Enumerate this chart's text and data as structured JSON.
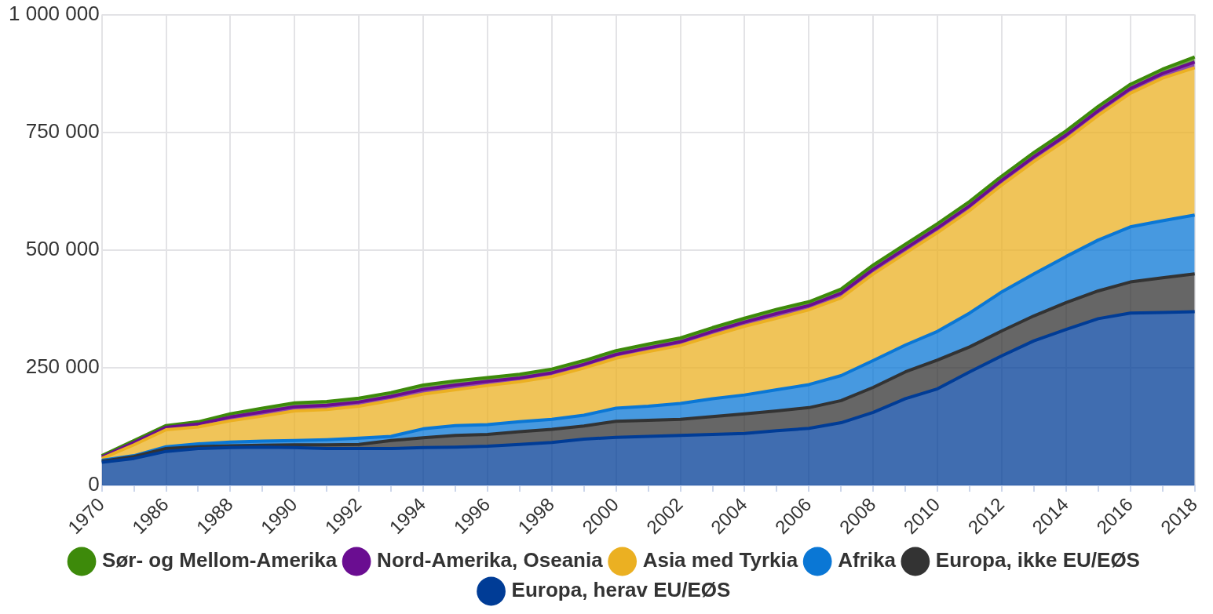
{
  "chart_data": {
    "type": "area",
    "stacked": true,
    "grid": true,
    "legend": "bottom",
    "categories": [
      "1970",
      null,
      "1986",
      null,
      "1988",
      null,
      "1990",
      null,
      "1992",
      null,
      "1994",
      null,
      "1996",
      null,
      "1998",
      null,
      "2000",
      null,
      "2002",
      null,
      "2004",
      null,
      "2006",
      null,
      "2008",
      null,
      "2010",
      null,
      "2012",
      null,
      "2014",
      null,
      "2016",
      null,
      "2018"
    ],
    "ylim": [
      0,
      1000000
    ],
    "yticks": [
      {
        "value": 0,
        "label": "0"
      },
      {
        "value": 250000,
        "label": "250 000"
      },
      {
        "value": 500000,
        "label": "500 000"
      },
      {
        "value": 750000,
        "label": "750 000"
      },
      {
        "value": 1000000,
        "label": "1 000 000"
      }
    ],
    "series": [
      {
        "name": "Europa, herav EU/EØS",
        "color": "#003c96",
        "values": [
          49000,
          57000,
          72000,
          78000,
          80000,
          81000,
          80000,
          78000,
          78000,
          78000,
          80000,
          81000,
          83000,
          87000,
          91000,
          98000,
          102000,
          104000,
          106000,
          108000,
          110000,
          116000,
          121000,
          133000,
          155000,
          184000,
          205000,
          241000,
          275000,
          307000,
          331000,
          354000,
          366000,
          367000,
          369000
        ]
      },
      {
        "name": "Europa, ikke EU/EØS",
        "color": "#333333",
        "values": [
          2000,
          4000,
          6000,
          4000,
          4000,
          4000,
          6000,
          8000,
          9000,
          17000,
          21000,
          25000,
          25000,
          27000,
          28000,
          28000,
          34000,
          34000,
          34000,
          38000,
          42000,
          42000,
          44000,
          47000,
          53000,
          57000,
          61000,
          53000,
          53000,
          53000,
          57000,
          59000,
          66000,
          74000,
          80000
        ]
      },
      {
        "name": "Afrika",
        "color": "#0a77d5",
        "values": [
          2000,
          2000,
          4000,
          6000,
          8000,
          9000,
          9000,
          11000,
          13000,
          9000,
          19000,
          21000,
          21000,
          21000,
          21000,
          23000,
          28000,
          30000,
          34000,
          38000,
          40000,
          45000,
          49000,
          53000,
          57000,
          57000,
          61000,
          72000,
          83000,
          89000,
          98000,
          108000,
          117000,
          121000,
          125000
        ]
      },
      {
        "name": "Asia med Tyrkia",
        "color": "#ebb022",
        "values": [
          4000,
          23000,
          36000,
          36000,
          45000,
          53000,
          63000,
          64000,
          68000,
          76000,
          74000,
          76000,
          83000,
          85000,
          91000,
          100000,
          106000,
          116000,
          123000,
          134000,
          146000,
          152000,
          159000,
          165000,
          184000,
          195000,
          210000,
          218000,
          227000,
          239000,
          248000,
          265000,
          284000,
          303000,
          313000
        ]
      },
      {
        "name": "Nord-Amerika, Oseania",
        "color": "#6a0d91",
        "values": [
          3000,
          5000,
          5000,
          6000,
          8000,
          9000,
          9000,
          9000,
          9000,
          9000,
          10000,
          10000,
          9000,
          8000,
          8000,
          8000,
          8000,
          8000,
          8000,
          9000,
          9000,
          10000,
          9000,
          10000,
          10000,
          10000,
          10000,
          10000,
          10000,
          10000,
          10000,
          10000,
          10000,
          10000,
          12000
        ]
      },
      {
        "name": "Sør- og Mellom-Amerika",
        "color": "#3d8a0a",
        "values": [
          3000,
          4000,
          4000,
          5000,
          7000,
          8000,
          8000,
          8000,
          8000,
          8000,
          9000,
          9000,
          8000,
          8000,
          8000,
          8000,
          8000,
          8000,
          8000,
          8000,
          8000,
          9000,
          8000,
          9000,
          9000,
          9000,
          9000,
          9000,
          9000,
          9000,
          9000,
          9000,
          9000,
          9000,
          11000
        ]
      }
    ]
  }
}
